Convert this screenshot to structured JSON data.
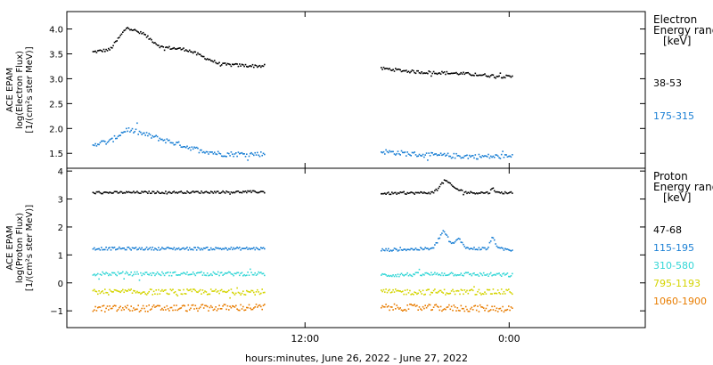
{
  "chart_data": [
    {
      "type": "scatter",
      "panel": "electron",
      "ylabel_lines": [
        "ACE EPAM",
        "log(Electron Flux)",
        "[1/(cm²s ster MeV)]"
      ],
      "ylim": [
        1.2,
        4.35
      ],
      "yticks": [
        1.5,
        2.0,
        2.5,
        3.0,
        3.5,
        4.0
      ],
      "ytick_labels": [
        "1.5",
        "2.0",
        "2.5",
        "3.0",
        "3.5",
        "4.0"
      ],
      "legend_title": [
        "Electron",
        "Energy ranges",
        "[keV]"
      ],
      "data_gap_hours": [
        -14.4,
        -7.6
      ],
      "series": [
        {
          "name": "38-53",
          "color": "#000000",
          "knots": [
            [
              -24.5,
              3.55
            ],
            [
              -23.5,
              3.6
            ],
            [
              -22.5,
              4.05
            ],
            [
              -21.5,
              3.9
            ],
            [
              -20.5,
              3.65
            ],
            [
              -19,
              3.6
            ],
            [
              -18,
              3.45
            ],
            [
              -17,
              3.3
            ],
            [
              -15,
              3.27
            ],
            [
              -14.5,
              3.27
            ],
            [
              -7.5,
              3.22
            ],
            [
              -5.5,
              3.15
            ],
            [
              -3,
              3.12
            ],
            [
              0,
              3.05
            ],
            [
              0.2,
              3.05
            ]
          ],
          "noise": 0.03
        },
        {
          "name": "175-315",
          "color": "#1a7fd4",
          "knots": [
            [
              -24.5,
              1.7
            ],
            [
              -23.5,
              1.75
            ],
            [
              -22.5,
              2.0
            ],
            [
              -21,
              1.85
            ],
            [
              -20,
              1.75
            ],
            [
              -18.5,
              1.6
            ],
            [
              -17,
              1.5
            ],
            [
              -15,
              1.5
            ],
            [
              -14.5,
              1.5
            ],
            [
              -7.5,
              1.55
            ],
            [
              -5,
              1.48
            ],
            [
              -2,
              1.45
            ],
            [
              0,
              1.45
            ],
            [
              0.2,
              1.45
            ]
          ],
          "noise": 0.05
        }
      ]
    },
    {
      "type": "scatter",
      "panel": "proton",
      "ylabel_lines": [
        "ACE EPAM",
        "log(Proton Flux)",
        "[1/(cm²s ster MeV)]"
      ],
      "ylim": [
        -1.6,
        4.1
      ],
      "yticks": [
        -1,
        0,
        1,
        2,
        3,
        4
      ],
      "ytick_labels": [
        "−1",
        "0",
        "1",
        "2",
        "3",
        "4"
      ],
      "legend_title": [
        "Proton",
        "Energy ranges",
        "[keV]"
      ],
      "data_gap_hours": [
        -14.4,
        -7.6
      ],
      "series": [
        {
          "name": "47-68",
          "color": "#000000",
          "knots": [
            [
              -24.5,
              3.25
            ],
            [
              -14.5,
              3.28
            ],
            [
              -7.5,
              3.22
            ],
            [
              -4.5,
              3.25
            ],
            [
              -3.8,
              3.7
            ],
            [
              -3.2,
              3.4
            ],
            [
              -2.5,
              3.25
            ],
            [
              -1.2,
              3.25
            ],
            [
              -1.0,
              3.45
            ],
            [
              -0.8,
              3.25
            ],
            [
              0.2,
              3.25
            ]
          ],
          "noise": 0.04
        },
        {
          "name": "115-195",
          "color": "#1a7fd4",
          "knots": [
            [
              -24.5,
              1.25
            ],
            [
              -14.5,
              1.25
            ],
            [
              -7.5,
              1.2
            ],
            [
              -4.5,
              1.25
            ],
            [
              -3.9,
              1.9
            ],
            [
              -3.4,
              1.4
            ],
            [
              -3.0,
              1.6
            ],
            [
              -2.5,
              1.25
            ],
            [
              -1.3,
              1.25
            ],
            [
              -1.0,
              1.7
            ],
            [
              -0.7,
              1.25
            ],
            [
              0.2,
              1.2
            ]
          ],
          "noise": 0.05
        },
        {
          "name": "310-580",
          "color": "#33d6d6",
          "knots": [
            [
              -24.5,
              0.35
            ],
            [
              -14.5,
              0.35
            ],
            [
              -7.5,
              0.3
            ],
            [
              -3.5,
              0.35
            ],
            [
              0.2,
              0.3
            ]
          ],
          "noise": 0.07
        },
        {
          "name": "795-1193",
          "color": "#d4d400",
          "knots": [
            [
              -24.5,
              -0.3
            ],
            [
              -14.5,
              -0.3
            ],
            [
              -7.5,
              -0.3
            ],
            [
              0.2,
              -0.3
            ]
          ],
          "noise": 0.1
        },
        {
          "name": "1060-1900",
          "color": "#e87c00",
          "knots": [
            [
              -24.5,
              -0.9
            ],
            [
              -14.5,
              -0.85
            ],
            [
              -7.5,
              -0.85
            ],
            [
              0.2,
              -0.9
            ]
          ],
          "noise": 0.12
        }
      ]
    }
  ],
  "x_axis": {
    "unit": "hours relative to 00:00 June 27, 2022",
    "xlim": [
      -26,
      8
    ],
    "ticks": [
      -12,
      0
    ],
    "tick_labels": [
      "12:00",
      "0:00"
    ],
    "xlabel": "hours:minutes, June 26, 2022 - June 27, 2022"
  }
}
